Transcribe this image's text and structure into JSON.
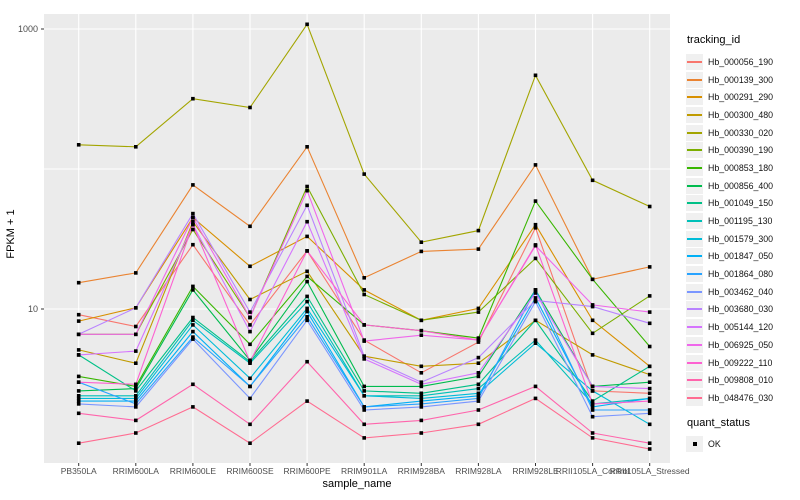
{
  "figure": {
    "background": "#ffffff",
    "panel_background": "#ebebeb",
    "gridline_color": "#ffffff",
    "tick_color": "#333333",
    "tick_label_color": "#4d4d4d",
    "point_color": "#000000"
  },
  "legend": {
    "tracking_title": "tracking_id",
    "quant_title": "quant_status",
    "quant_items": [
      {
        "label": "OK",
        "marker": "black-square-point"
      }
    ]
  },
  "chart_data": {
    "type": "line",
    "title": "",
    "xlabel": "sample_name",
    "ylabel": "FPKM + 1",
    "y_scale": "log10",
    "y_ticks": [
      {
        "label": "1000",
        "value": 1000
      },
      {
        "label": "10",
        "value": 10
      }
    ],
    "y_gridlines": [
      10,
      100,
      1000
    ],
    "ylim": [
      0.85,
      1350
    ],
    "grid": true,
    "legend_position": "right",
    "point_marker": "filled-black-square",
    "categories": [
      "PB350LA",
      "RRIM600LA",
      "RRIM600LE",
      "RRIM600SE",
      "RRIM600PE",
      "RRIM901LA",
      "RRIM928BA",
      "RRIM928LA",
      "RRIM928LE",
      "RRII105LA_Control",
      "RRII105LA_Stressed"
    ],
    "series": [
      {
        "name": "Hb_000056_190",
        "color": "#F8766D",
        "values": [
          9.1,
          7.5,
          28.8,
          7.7,
          26.0,
          6.0,
          3.5,
          5.8,
          38.0,
          2.6,
          2.5
        ]
      },
      {
        "name": "Hb_000139_300",
        "color": "#EA8331",
        "values": [
          15.4,
          18.1,
          77.0,
          39.0,
          144.0,
          16.7,
          25.8,
          26.8,
          107.0,
          16.3,
          20.0
        ]
      },
      {
        "name": "Hb_000291_290",
        "color": "#D89000",
        "values": [
          8.2,
          10.2,
          45.0,
          20.2,
          33.0,
          13.7,
          8.3,
          10.1,
          40.0,
          8.3,
          3.9
        ]
      },
      {
        "name": "Hb_000300_480",
        "color": "#C09B00",
        "values": [
          5.1,
          4.1,
          42.0,
          11.7,
          18.6,
          4.6,
          3.9,
          4.1,
          8.3,
          4.7,
          3.4
        ]
      },
      {
        "name": "Hb_000330_020",
        "color": "#A3A500",
        "values": [
          149.0,
          144.0,
          318.0,
          275.0,
          1080.0,
          92.0,
          30.0,
          36.3,
          467.0,
          83.0,
          54.0
        ]
      },
      {
        "name": "Hb_000390_190",
        "color": "#7CAE00",
        "values": [
          6.6,
          6.6,
          37.0,
          8.7,
          75.0,
          12.7,
          8.3,
          9.5,
          23.0,
          6.7,
          12.4
        ]
      },
      {
        "name": "Hb_000853_180",
        "color": "#39B600",
        "values": [
          3.3,
          2.8,
          14.5,
          5.6,
          17.1,
          7.7,
          7.0,
          6.2,
          59.0,
          16.3,
          5.4
        ]
      },
      {
        "name": "Hb_000856_400",
        "color": "#00BB4E",
        "values": [
          2.6,
          2.7,
          13.7,
          4.3,
          15.7,
          2.8,
          2.8,
          3.3,
          13.7,
          2.8,
          3.0
        ]
      },
      {
        "name": "Hb_001049_150",
        "color": "#00C087",
        "values": [
          4.7,
          2.6,
          8.7,
          4.2,
          12.3,
          2.6,
          2.5,
          2.9,
          8.3,
          2.2,
          3.9
        ]
      },
      {
        "name": "Hb_001195_130",
        "color": "#00C0B8",
        "values": [
          2.4,
          2.4,
          8.3,
          4.1,
          11.3,
          2.4,
          2.4,
          2.7,
          6.0,
          2.1,
          2.3
        ]
      },
      {
        "name": "Hb_001579_300",
        "color": "#00BCD8",
        "values": [
          2.3,
          2.3,
          7.7,
          3.2,
          10.1,
          2.4,
          2.3,
          2.5,
          5.7,
          2.6,
          1.5
        ]
      },
      {
        "name": "Hb_001847_050",
        "color": "#00B0F6",
        "values": [
          2.2,
          2.2,
          6.9,
          2.8,
          9.6,
          2.0,
          2.2,
          2.4,
          12.0,
          2.0,
          2.3
        ]
      },
      {
        "name": "Hb_001864_080",
        "color": "#29A3FF",
        "values": [
          3.0,
          2.1,
          6.3,
          2.8,
          8.8,
          2.0,
          2.1,
          2.3,
          13.7,
          1.9,
          1.9
        ]
      },
      {
        "name": "Hb_003462_040",
        "color": "#7A96FF",
        "values": [
          2.1,
          2.0,
          6.1,
          2.3,
          8.3,
          1.9,
          2.0,
          2.2,
          11.3,
          1.7,
          1.8
        ]
      },
      {
        "name": "Hb_003680_030",
        "color": "#B983FF",
        "values": [
          6.6,
          10.2,
          48.0,
          9.5,
          55.0,
          4.6,
          3.0,
          4.5,
          11.5,
          10.4,
          7.9
        ]
      },
      {
        "name": "Hb_005144_120",
        "color": "#D574FE",
        "values": [
          4.7,
          5.0,
          40.0,
          6.9,
          42.0,
          4.4,
          2.9,
          3.5,
          13.0,
          2.8,
          2.7
        ]
      },
      {
        "name": "Hb_006925_050",
        "color": "#EF67EB",
        "values": [
          6.6,
          6.6,
          45.0,
          8.7,
          70.0,
          5.9,
          6.5,
          6.0,
          28.3,
          10.7,
          9.5
        ]
      },
      {
        "name": "Hb_009222_110",
        "color": "#FD61D1",
        "values": [
          3.0,
          2.9,
          40.0,
          4.2,
          26.0,
          7.7,
          7.0,
          6.0,
          28.7,
          2.1,
          2.2
        ]
      },
      {
        "name": "Hb_009808_010",
        "color": "#FF65AC",
        "values": [
          1.8,
          1.6,
          2.9,
          1.5,
          4.2,
          1.5,
          1.6,
          1.9,
          2.8,
          1.3,
          1.1
        ]
      },
      {
        "name": "Hb_048476_030",
        "color": "#FF6C91",
        "values": [
          1.1,
          1.3,
          2.0,
          1.1,
          2.2,
          1.2,
          1.3,
          1.5,
          2.3,
          1.2,
          1.0
        ]
      }
    ]
  }
}
